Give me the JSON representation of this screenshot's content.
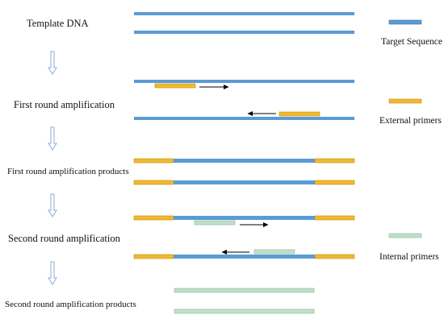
{
  "colors": {
    "target": "#5B9BD5",
    "target_stroke": "#41719C",
    "external": "#F2B82E",
    "external_stroke": "#C08E12",
    "internal": "#BFE0C8",
    "internal_stroke": "#88B796",
    "arrow_stroke": "#8FAADC",
    "pointer": "#000000"
  },
  "stages": [
    {
      "label": "Template DNA"
    },
    {
      "label": "First round amplification"
    },
    {
      "label": "First round amplification products"
    },
    {
      "label": "Second round amplification"
    },
    {
      "label": "Second round amplification products"
    }
  ],
  "legend": [
    {
      "label": "Target Sequence",
      "type": "target"
    },
    {
      "label": "External primers",
      "type": "external"
    },
    {
      "label": "Internal primers",
      "type": "internal"
    }
  ]
}
